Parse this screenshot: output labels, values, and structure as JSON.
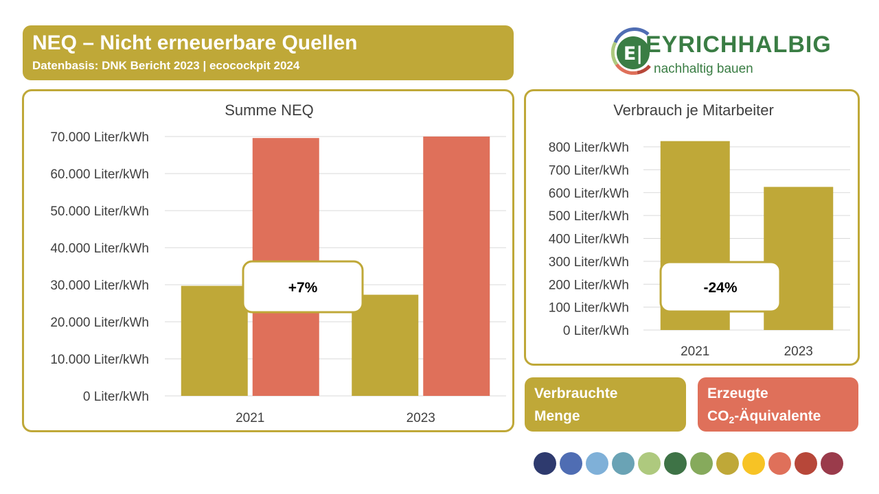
{
  "header": {
    "title": "NEQ – Nicht erneuerbare Quellen",
    "subtitle": "Datenbasis: DNK Bericht 2023 | ecocockpit 2024"
  },
  "logo": {
    "name": "EYRICHHALBIG",
    "tagline": "nachhaltig bauen"
  },
  "colors": {
    "primary": "#bfa838",
    "secondary": "#df705a",
    "gridline": "#d9d9d9",
    "text": "#404040",
    "palette": [
      "#2e3a6e",
      "#4f6db3",
      "#7fb0d8",
      "#6aa3b5",
      "#aec97e",
      "#3e7346",
      "#86aa5c",
      "#bfa838",
      "#f7c325",
      "#df705a",
      "#b74739",
      "#9a3b4b"
    ]
  },
  "chart_data": [
    {
      "type": "bar",
      "title": "Summe NEQ",
      "categories": [
        "2021",
        "2023"
      ],
      "series": [
        {
          "values": [
            29700,
            27300
          ]
        },
        {
          "values": [
            69600,
            70000
          ]
        }
      ],
      "ylim": [
        0,
        70000
      ],
      "yticks": [
        0,
        10000,
        20000,
        30000,
        40000,
        50000,
        60000,
        70000
      ],
      "ytick_labels": [
        "0 Liter/kWh",
        "10.000 Liter/kWh",
        "20.000 Liter/kWh",
        "30.000 Liter/kWh",
        "40.000 Liter/kWh",
        "50.000 Liter/kWh",
        "60.000 Liter/kWh",
        "70.000 Liter/kWh"
      ],
      "grid": true,
      "annotation": "+7%"
    },
    {
      "type": "bar",
      "title": "Verbrauch je Mitarbeiter",
      "categories": [
        "2021",
        "2023"
      ],
      "series": [
        {
          "values": [
            825,
            625
          ]
        }
      ],
      "ylim": [
        0,
        800
      ],
      "yticks": [
        0,
        100,
        200,
        300,
        400,
        500,
        600,
        700,
        800
      ],
      "ytick_labels": [
        "0 Liter/kWh",
        "100 Liter/kWh",
        "200 Liter/kWh",
        "300 Liter/kWh",
        "400 Liter/kWh",
        "500 Liter/kWh",
        "600 Liter/kWh",
        "700 Liter/kWh",
        "800 Liter/kWh"
      ],
      "grid": true,
      "annotation": "-24%"
    }
  ],
  "legend": {
    "primary_line1": "Verbrauchte",
    "primary_line2": "Menge",
    "secondary_line1": "Erzeugte",
    "secondary_line2_prefix": "CO",
    "secondary_line2_sub": "2",
    "secondary_line2_suffix": "-Äquivalente"
  }
}
